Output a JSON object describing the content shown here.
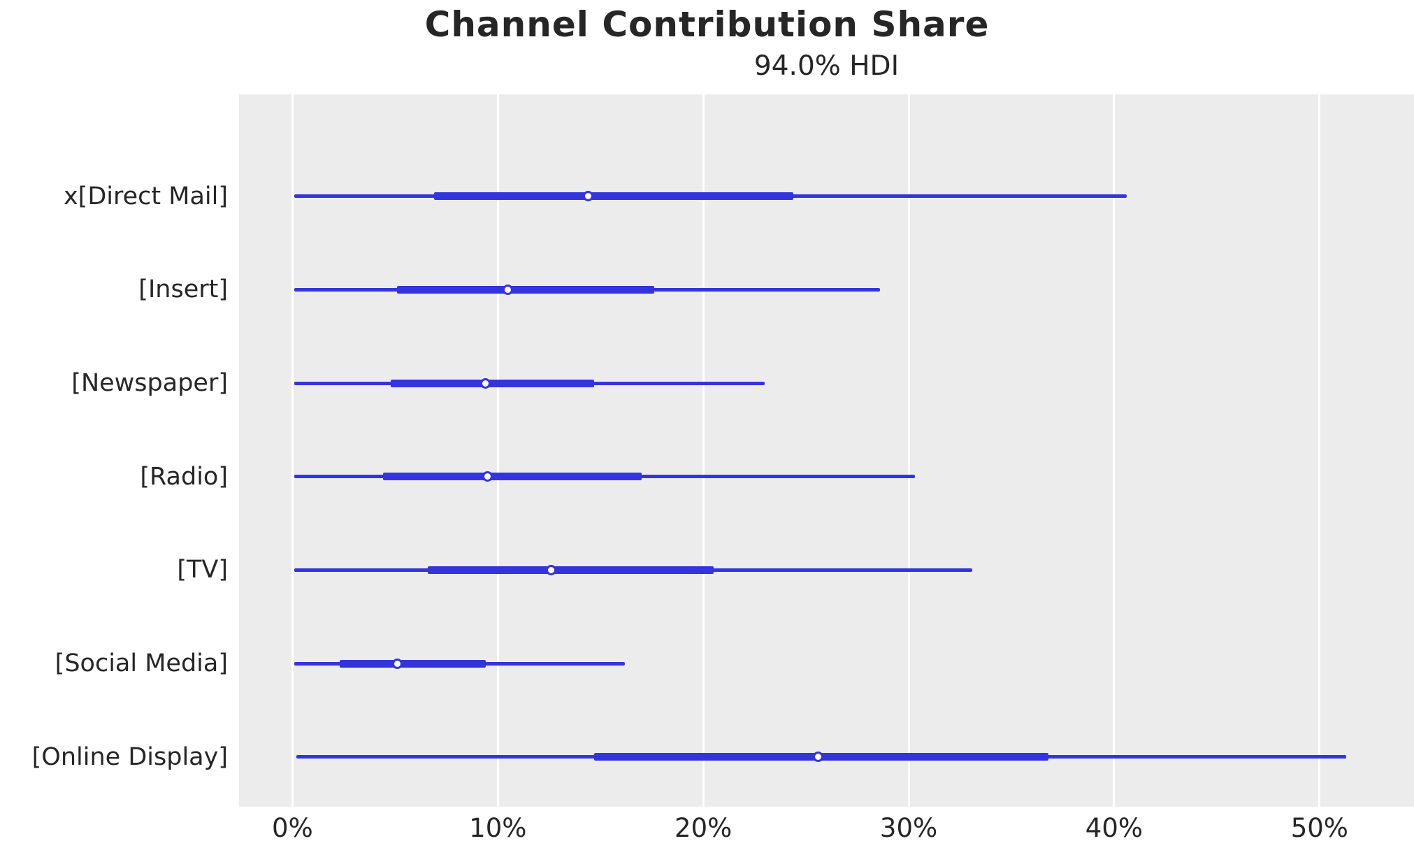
{
  "colors": {
    "line_blue": "#3434dd",
    "plot_background": "#ececec",
    "gridline": "#ffffff",
    "text": "#262626",
    "figure_background": "#ffffff"
  },
  "chart_data": {
    "type": "forest",
    "title": "Channel Contribution Share",
    "subtitle": "94.0% HDI",
    "hdi_probability": "94.0%",
    "orientation": "horizontal",
    "unit": "percent",
    "grid": "vertical white gridlines on light-gray panel",
    "legend_position": "none",
    "xlim": [
      -2.6,
      54.6
    ],
    "x_ticks": [
      {
        "value": 0,
        "label": "0%"
      },
      {
        "value": 10,
        "label": "10%"
      },
      {
        "value": 20,
        "label": "20%"
      },
      {
        "value": 30,
        "label": "30%"
      },
      {
        "value": 40,
        "label": "40%"
      },
      {
        "value": 50,
        "label": "50%"
      }
    ],
    "rows": [
      {
        "label": "x[Direct Mail]",
        "hdi_lower": 0.1,
        "q1": 6.9,
        "median": 14.4,
        "q3": 24.4,
        "hdi_upper": 40.6
      },
      {
        "label": "[Insert]",
        "hdi_lower": 0.1,
        "q1": 5.1,
        "median": 10.5,
        "q3": 17.6,
        "hdi_upper": 28.6
      },
      {
        "label": "[Newspaper]",
        "hdi_lower": 0.1,
        "q1": 4.8,
        "median": 9.4,
        "q3": 14.7,
        "hdi_upper": 23.0
      },
      {
        "label": "[Radio]",
        "hdi_lower": 0.1,
        "q1": 4.4,
        "median": 9.5,
        "q3": 17.0,
        "hdi_upper": 30.3
      },
      {
        "label": "[TV]",
        "hdi_lower": 0.1,
        "q1": 6.6,
        "median": 12.6,
        "q3": 20.5,
        "hdi_upper": 33.1
      },
      {
        "label": "[Social Media]",
        "hdi_lower": 0.1,
        "q1": 2.3,
        "median": 5.1,
        "q3": 9.4,
        "hdi_upper": 16.2
      },
      {
        "label": "[Online Display]",
        "hdi_lower": 0.2,
        "q1": 14.7,
        "median": 25.6,
        "q3": 36.8,
        "hdi_upper": 51.3
      }
    ]
  }
}
